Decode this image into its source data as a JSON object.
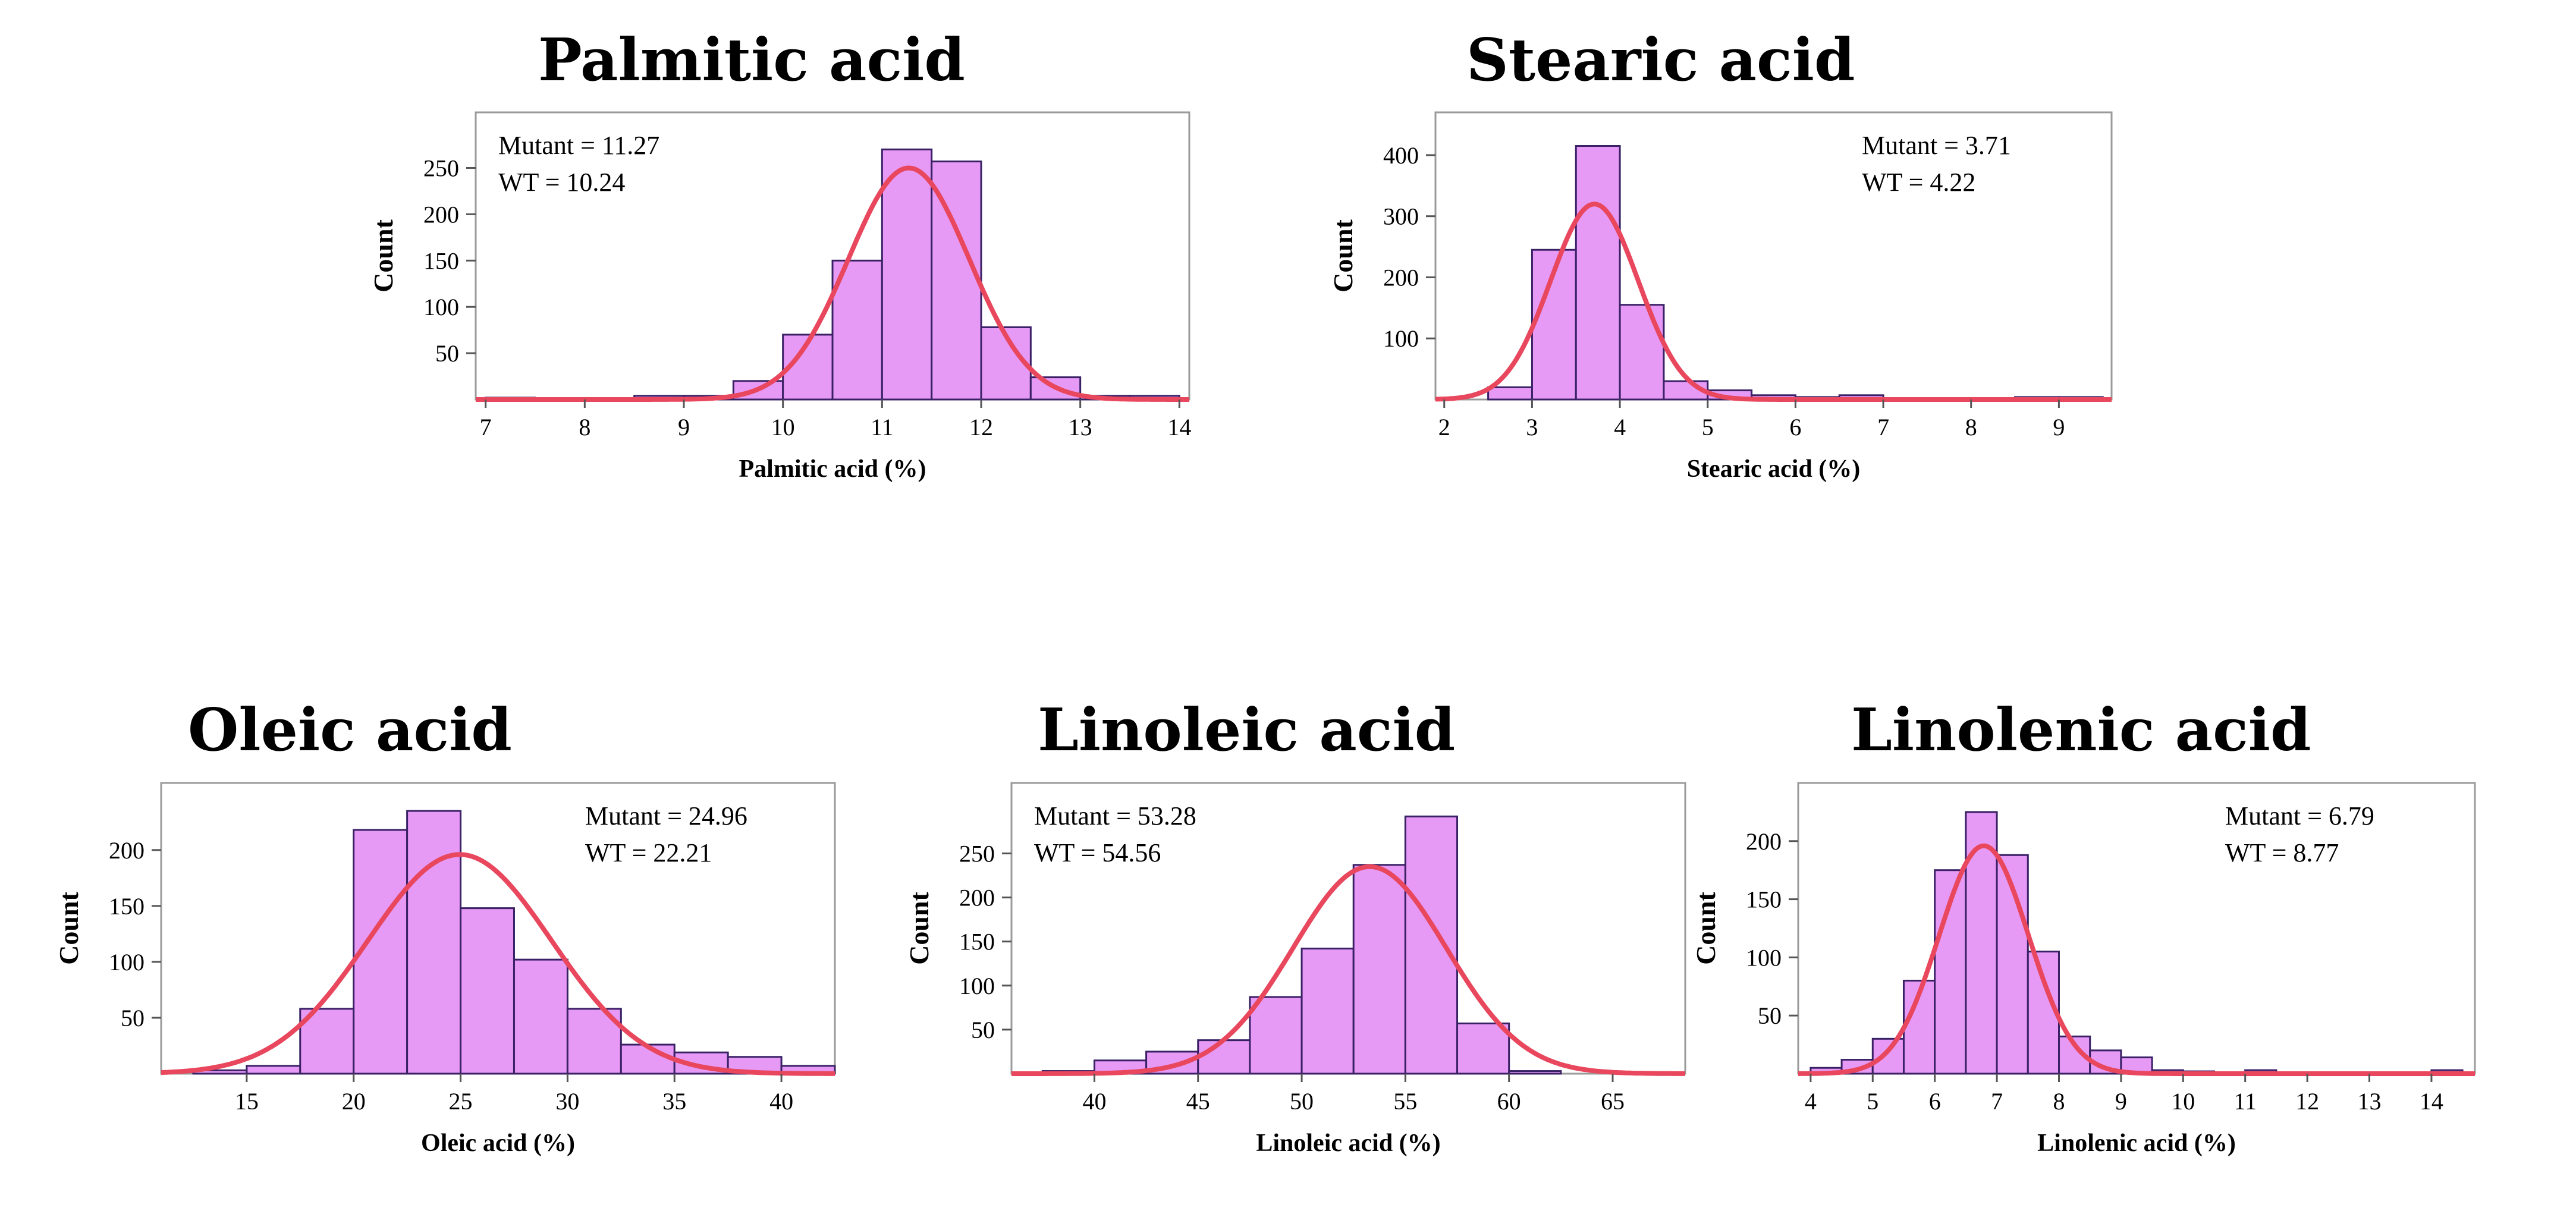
{
  "colors": {
    "bar_fill": "#e79af5",
    "bar_stroke": "#3a2166",
    "curve": "#e8475d",
    "frame": "#9a9a9a",
    "axis": "#555555"
  },
  "chart_data": [
    {
      "id": "palmitic",
      "type": "bar",
      "title": "Palmitic acid",
      "xlabel": "Palmitic acid (%)",
      "ylabel": "Count",
      "xlim": [
        6.9,
        14.1
      ],
      "ylim": [
        0,
        310
      ],
      "xticks": [
        7,
        8,
        9,
        10,
        11,
        12,
        13,
        14
      ],
      "yticks": [
        50,
        100,
        150,
        200,
        250
      ],
      "bin_width": 0.5,
      "bins": [
        [
          7.0,
          2
        ],
        [
          7.5,
          0
        ],
        [
          8.0,
          1
        ],
        [
          8.5,
          4
        ],
        [
          9.0,
          4
        ],
        [
          9.5,
          20
        ],
        [
          10.0,
          70
        ],
        [
          10.5,
          150
        ],
        [
          11.0,
          270
        ],
        [
          11.5,
          257
        ],
        [
          12.0,
          78
        ],
        [
          12.5,
          24
        ],
        [
          13.0,
          4
        ],
        [
          13.5,
          4
        ]
      ],
      "fit": {
        "mean": 11.27,
        "sd": 0.61,
        "peak": 250
      },
      "annotations": [
        "Mutant = 11.27",
        "WT = 10.24"
      ],
      "annot_pos": "top-left"
    },
    {
      "id": "stearic",
      "type": "bar",
      "title": "Stearic acid",
      "xlabel": "Stearic acid (%)",
      "ylabel": "Count",
      "xlim": [
        1.9,
        9.6
      ],
      "ylim": [
        0,
        470
      ],
      "xticks": [
        2,
        3,
        4,
        5,
        6,
        7,
        8,
        9
      ],
      "yticks": [
        100,
        200,
        300,
        400
      ],
      "bin_width": 0.5,
      "bins": [
        [
          2.5,
          20
        ],
        [
          3.0,
          245
        ],
        [
          3.5,
          415
        ],
        [
          4.0,
          155
        ],
        [
          4.5,
          30
        ],
        [
          5.0,
          15
        ],
        [
          5.5,
          7
        ],
        [
          6.0,
          4
        ],
        [
          6.5,
          7
        ],
        [
          8.5,
          4
        ],
        [
          9.0,
          4
        ]
      ],
      "fit": {
        "mean": 3.71,
        "sd": 0.5,
        "peak": 320
      },
      "annotations": [
        "Mutant = 3.71",
        "WT = 4.22"
      ],
      "annot_pos": "top-right"
    },
    {
      "id": "oleic",
      "type": "bar",
      "title": "Oleic acid",
      "xlabel": "Oleic acid (%)",
      "ylabel": "Count",
      "xlim": [
        11,
        42.5
      ],
      "ylim": [
        0,
        260
      ],
      "xticks": [
        15,
        20,
        25,
        30,
        35,
        40
      ],
      "yticks": [
        50,
        100,
        150,
        200
      ],
      "bin_width": 2.5,
      "bins": [
        [
          12.5,
          3
        ],
        [
          15.0,
          7
        ],
        [
          17.5,
          58
        ],
        [
          20.0,
          218
        ],
        [
          22.5,
          235
        ],
        [
          25.0,
          148
        ],
        [
          27.5,
          102
        ],
        [
          30.0,
          58
        ],
        [
          32.5,
          26
        ],
        [
          35.0,
          19
        ],
        [
          37.5,
          15
        ],
        [
          40.0,
          7
        ]
      ],
      "fit": {
        "mean": 24.96,
        "sd": 4.3,
        "peak": 196
      },
      "annotations": [
        "Mutant = 24.96",
        "WT = 22.21"
      ],
      "annot_pos": "top-right"
    },
    {
      "id": "linoleic",
      "type": "bar",
      "title": "Linoleic acid",
      "xlabel": "Linoleic acid (%)",
      "ylabel": "Count",
      "xlim": [
        36,
        68.5
      ],
      "ylim": [
        0,
        330
      ],
      "xticks": [
        40,
        45,
        50,
        55,
        60,
        65
      ],
      "yticks": [
        50,
        100,
        150,
        200,
        250
      ],
      "bin_width": 2.5,
      "bins": [
        [
          37.5,
          3
        ],
        [
          40.0,
          15
        ],
        [
          42.5,
          25
        ],
        [
          45.0,
          38
        ],
        [
          47.5,
          87
        ],
        [
          50.0,
          142
        ],
        [
          52.5,
          237
        ],
        [
          55.0,
          292
        ],
        [
          57.5,
          57
        ],
        [
          60.0,
          3
        ]
      ],
      "fit": {
        "mean": 53.28,
        "sd": 3.7,
        "peak": 235
      },
      "annotations": [
        "Mutant = 53.28",
        "WT = 54.56"
      ],
      "annot_pos": "top-left"
    },
    {
      "id": "linolenic",
      "type": "bar",
      "title": "Linolenic acid",
      "xlabel": "Linolenic acid (%)",
      "ylabel": "Count",
      "xlim": [
        3.8,
        14.7
      ],
      "ylim": [
        0,
        250
      ],
      "xticks": [
        4,
        5,
        6,
        7,
        8,
        9,
        10,
        11,
        12,
        13,
        14
      ],
      "yticks": [
        50,
        100,
        150,
        200
      ],
      "bin_width": 0.5,
      "bins": [
        [
          4.0,
          5
        ],
        [
          4.5,
          12
        ],
        [
          5.0,
          30
        ],
        [
          5.5,
          80
        ],
        [
          6.0,
          175
        ],
        [
          6.5,
          225
        ],
        [
          7.0,
          188
        ],
        [
          7.5,
          105
        ],
        [
          8.0,
          32
        ],
        [
          8.5,
          20
        ],
        [
          9.0,
          14
        ],
        [
          9.5,
          3
        ],
        [
          10.0,
          2
        ],
        [
          11.0,
          3
        ],
        [
          14.0,
          3
        ]
      ],
      "fit": {
        "mean": 6.79,
        "sd": 0.72,
        "peak": 196
      },
      "annotations": [
        "Mutant = 6.79",
        "WT = 8.77"
      ],
      "annot_pos": "top-right"
    }
  ]
}
